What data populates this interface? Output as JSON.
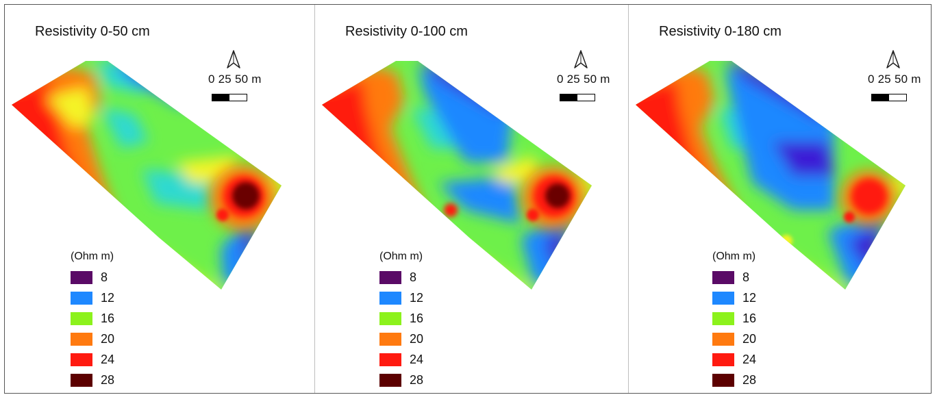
{
  "panels": [
    {
      "title": "Resistivity 0-50 cm"
    },
    {
      "title": "Resistivity 0-100 cm"
    },
    {
      "title": "Resistivity 0-180 cm"
    }
  ],
  "scale": {
    "t0": "0",
    "t1": "25",
    "t2": "50",
    "unit": "m"
  },
  "legend": {
    "title": "(Ohm m)",
    "items": [
      {
        "label": "8",
        "color": "#5a0a66"
      },
      {
        "label": "12",
        "color": "#1e88ff"
      },
      {
        "label": "16",
        "color": "#8cf21c"
      },
      {
        "label": "20",
        "color": "#ff7a10"
      },
      {
        "label": "24",
        "color": "#ff1a10"
      },
      {
        "label": "28",
        "color": "#5c0000"
      }
    ]
  },
  "map_colors": {
    "violet": "#3a1fd6",
    "blue": "#1e88ff",
    "cyan": "#2fd9d0",
    "green": "#6ef04a",
    "yellow": "#f4f425",
    "orange": "#ff7a10",
    "red": "#ff1a10",
    "dark_red": "#6a0000"
  }
}
